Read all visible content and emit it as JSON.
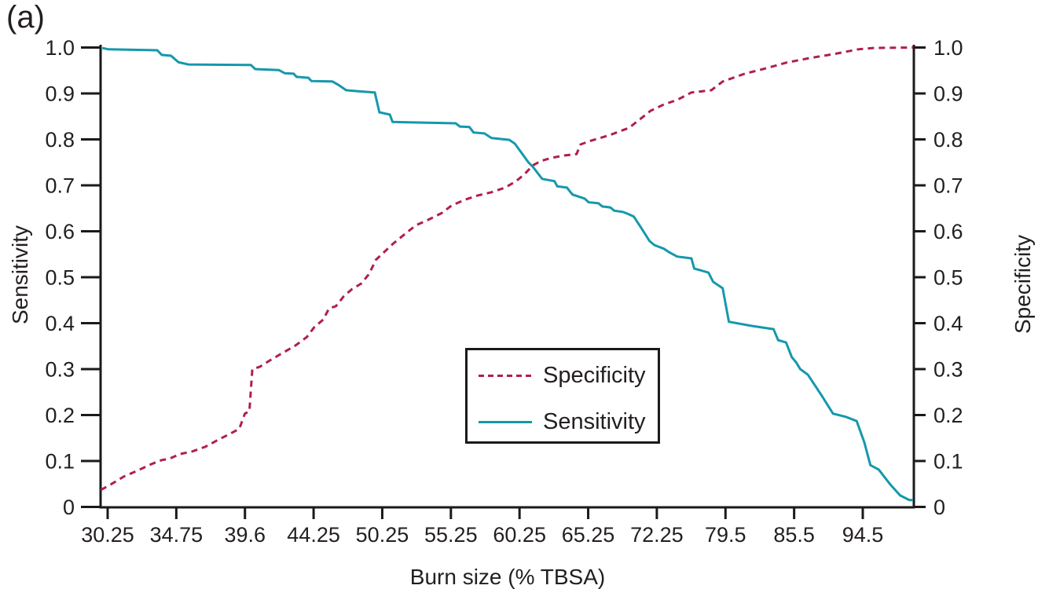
{
  "panel_label": "(a)",
  "colors": {
    "sensitivity_line": "#1598ac",
    "specificity_line": "#b01e50",
    "axis": "#1a1a1a",
    "text": "#231f20",
    "background": "#ffffff"
  },
  "axes": {
    "x": {
      "label": "Burn size (% TBSA)",
      "tick_labels": [
        "30.25",
        "34.75",
        "39.6",
        "44.25",
        "50.25",
        "55.25",
        "60.25",
        "65.25",
        "72.25",
        "79.5",
        "85.5",
        "94.5"
      ]
    },
    "y_left": {
      "label": "Sensitivity",
      "tick_labels": [
        "0",
        "0.1",
        "0.2",
        "0.3",
        "0.4",
        "0.5",
        "0.6",
        "0.7",
        "0.8",
        "0.9",
        "1.0"
      ]
    },
    "y_right": {
      "label": "Specificity",
      "tick_labels": [
        "0",
        "0.1",
        "0.2",
        "0.3",
        "0.4",
        "0.5",
        "0.6",
        "0.7",
        "0.8",
        "0.9",
        "1.0"
      ]
    }
  },
  "legend": {
    "position": "bottom-center-inside",
    "items": [
      {
        "label": "Specificity",
        "style": "dashed",
        "color": "#b01e50"
      },
      {
        "label": "Sensitivity",
        "style": "solid",
        "color": "#1598ac"
      }
    ]
  },
  "chart_data": {
    "type": "line",
    "title": "",
    "xlabel": "Burn size (% TBSA)",
    "ylabel_left": "Sensitivity",
    "ylabel_right": "Specificity",
    "ylim": [
      0,
      1
    ],
    "x_tick_values": [
      30.25,
      34.75,
      39.6,
      44.25,
      50.25,
      55.25,
      60.25,
      65.25,
      72.25,
      79.5,
      85.5,
      94.5
    ],
    "x_scale_note": "tick values are equally spaced on the axis (non-linear numeric scale); curves span slightly beyond first and last ticks",
    "grid": false,
    "series": [
      {
        "name": "Specificity",
        "axis": "right",
        "style": "dashed",
        "color": "#b01e50",
        "points": [
          [
            29.8,
            0.037
          ],
          [
            30.5,
            0.05
          ],
          [
            31.3,
            0.066
          ],
          [
            32.2,
            0.079
          ],
          [
            33.1,
            0.093
          ],
          [
            33.8,
            0.102
          ],
          [
            34.3,
            0.105
          ],
          [
            35.0,
            0.115
          ],
          [
            35.9,
            0.121
          ],
          [
            36.8,
            0.131
          ],
          [
            37.7,
            0.146
          ],
          [
            38.6,
            0.16
          ],
          [
            39.2,
            0.17
          ],
          [
            39.6,
            0.203
          ],
          [
            39.9,
            0.208
          ],
          [
            40.1,
            0.3
          ],
          [
            40.6,
            0.305
          ],
          [
            41.4,
            0.321
          ],
          [
            42.3,
            0.338
          ],
          [
            43.0,
            0.351
          ],
          [
            43.8,
            0.37
          ],
          [
            44.3,
            0.391
          ],
          [
            45.1,
            0.408
          ],
          [
            45.6,
            0.432
          ],
          [
            46.2,
            0.437
          ],
          [
            46.9,
            0.459
          ],
          [
            47.6,
            0.474
          ],
          [
            48.4,
            0.486
          ],
          [
            49.1,
            0.507
          ],
          [
            49.7,
            0.538
          ],
          [
            50.4,
            0.555
          ],
          [
            51.0,
            0.572
          ],
          [
            51.9,
            0.594
          ],
          [
            52.7,
            0.613
          ],
          [
            53.6,
            0.625
          ],
          [
            54.6,
            0.64
          ],
          [
            55.3,
            0.656
          ],
          [
            56.3,
            0.669
          ],
          [
            57.2,
            0.678
          ],
          [
            58.2,
            0.685
          ],
          [
            59.2,
            0.695
          ],
          [
            60.0,
            0.709
          ],
          [
            60.6,
            0.724
          ],
          [
            61.2,
            0.743
          ],
          [
            61.8,
            0.753
          ],
          [
            62.6,
            0.76
          ],
          [
            63.5,
            0.765
          ],
          [
            64.4,
            0.768
          ],
          [
            64.7,
            0.789
          ],
          [
            65.5,
            0.797
          ],
          [
            67.4,
            0.809
          ],
          [
            69.4,
            0.825
          ],
          [
            70.6,
            0.845
          ],
          [
            71.6,
            0.862
          ],
          [
            73.0,
            0.876
          ],
          [
            74.4,
            0.886
          ],
          [
            75.9,
            0.902
          ],
          [
            78.0,
            0.907
          ],
          [
            79.2,
            0.926
          ],
          [
            81.2,
            0.943
          ],
          [
            83.1,
            0.955
          ],
          [
            84.8,
            0.967
          ],
          [
            87.5,
            0.977
          ],
          [
            90.8,
            0.986
          ],
          [
            93.9,
            0.996
          ],
          [
            95.9,
            0.999
          ],
          [
            101.1,
            1.0
          ]
        ]
      },
      {
        "name": "Sensitivity",
        "axis": "left",
        "style": "solid",
        "color": "#1598ac",
        "points": [
          [
            29.9,
            0.999
          ],
          [
            30.3,
            0.996
          ],
          [
            33.5,
            0.994
          ],
          [
            33.8,
            0.984
          ],
          [
            34.4,
            0.982
          ],
          [
            34.9,
            0.968
          ],
          [
            35.6,
            0.963
          ],
          [
            40.0,
            0.962
          ],
          [
            40.3,
            0.953
          ],
          [
            41.9,
            0.951
          ],
          [
            42.3,
            0.944
          ],
          [
            42.9,
            0.943
          ],
          [
            43.1,
            0.936
          ],
          [
            43.9,
            0.934
          ],
          [
            44.1,
            0.927
          ],
          [
            45.9,
            0.926
          ],
          [
            46.4,
            0.919
          ],
          [
            47.1,
            0.907
          ],
          [
            48.1,
            0.905
          ],
          [
            49.6,
            0.902
          ],
          [
            50.0,
            0.859
          ],
          [
            50.8,
            0.854
          ],
          [
            51.0,
            0.838
          ],
          [
            55.6,
            0.835
          ],
          [
            55.9,
            0.828
          ],
          [
            56.6,
            0.827
          ],
          [
            56.9,
            0.815
          ],
          [
            57.7,
            0.813
          ],
          [
            58.2,
            0.803
          ],
          [
            59.5,
            0.799
          ],
          [
            59.9,
            0.791
          ],
          [
            60.9,
            0.75
          ],
          [
            61.2,
            0.741
          ],
          [
            61.9,
            0.714
          ],
          [
            62.8,
            0.709
          ],
          [
            63.0,
            0.698
          ],
          [
            63.7,
            0.695
          ],
          [
            64.1,
            0.68
          ],
          [
            65.0,
            0.671
          ],
          [
            65.3,
            0.663
          ],
          [
            66.3,
            0.661
          ],
          [
            66.7,
            0.654
          ],
          [
            67.5,
            0.652
          ],
          [
            67.9,
            0.645
          ],
          [
            68.8,
            0.642
          ],
          [
            69.4,
            0.637
          ],
          [
            69.9,
            0.632
          ],
          [
            70.7,
            0.606
          ],
          [
            71.5,
            0.579
          ],
          [
            72.0,
            0.57
          ],
          [
            73.0,
            0.562
          ],
          [
            73.5,
            0.555
          ],
          [
            74.4,
            0.545
          ],
          [
            75.9,
            0.541
          ],
          [
            76.2,
            0.519
          ],
          [
            77.7,
            0.51
          ],
          [
            78.2,
            0.49
          ],
          [
            79.2,
            0.476
          ],
          [
            79.8,
            0.403
          ],
          [
            81.8,
            0.394
          ],
          [
            83.7,
            0.387
          ],
          [
            84.1,
            0.363
          ],
          [
            84.8,
            0.358
          ],
          [
            85.3,
            0.326
          ],
          [
            85.8,
            0.314
          ],
          [
            86.3,
            0.3
          ],
          [
            87.3,
            0.288
          ],
          [
            89.2,
            0.24
          ],
          [
            90.6,
            0.203
          ],
          [
            92.3,
            0.196
          ],
          [
            93.7,
            0.187
          ],
          [
            94.7,
            0.141
          ],
          [
            95.5,
            0.091
          ],
          [
            96.6,
            0.081
          ],
          [
            98.1,
            0.049
          ],
          [
            99.4,
            0.025
          ],
          [
            100.6,
            0.015
          ],
          [
            101.1,
            0.015
          ]
        ]
      }
    ]
  }
}
